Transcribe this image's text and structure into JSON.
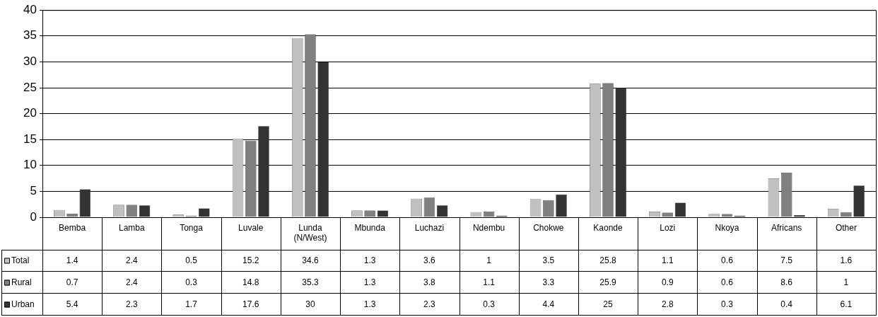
{
  "chart_data": {
    "type": "bar",
    "categories": [
      "Bemba",
      "Lamba",
      "Tonga",
      "Luvale",
      "Lunda (N/West)",
      "Mbunda",
      "Luchazi",
      "Ndembu",
      "Chokwe",
      "Kaonde",
      "Lozi",
      "Nkoya",
      "Africans",
      "Other"
    ],
    "series": [
      {
        "name": "Total",
        "color": "#c0c0c0",
        "values": [
          1.4,
          2.4,
          0.5,
          15.2,
          34.6,
          1.3,
          3.6,
          1,
          3.5,
          25.8,
          1.1,
          0.6,
          7.5,
          1.6
        ]
      },
      {
        "name": "Rural",
        "color": "#808080",
        "values": [
          0.7,
          2.4,
          0.3,
          14.8,
          35.3,
          1.3,
          3.8,
          1.1,
          3.3,
          25.9,
          0.9,
          0.6,
          8.6,
          1
        ]
      },
      {
        "name": "Urban",
        "color": "#333333",
        "values": [
          5.4,
          2.3,
          1.7,
          17.6,
          30,
          1.3,
          2.3,
          0.3,
          4.4,
          25,
          2.8,
          0.3,
          0.4,
          6.1
        ]
      }
    ],
    "ylim": [
      0,
      40
    ],
    "yticks": [
      0,
      5,
      10,
      15,
      20,
      25,
      30,
      35,
      40
    ],
    "grid": "y",
    "legend": "bottom",
    "data_labels": true
  }
}
